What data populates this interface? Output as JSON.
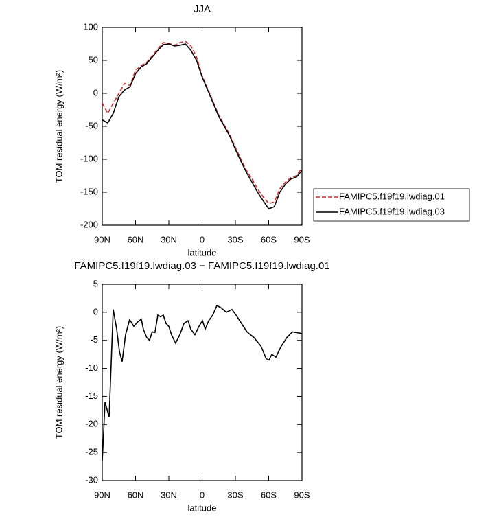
{
  "chart_data": [
    {
      "type": "line",
      "title": "JJA",
      "xlabel": "latitude",
      "ylabel": "TOM residual energy (W/m²)",
      "x": [
        90,
        85,
        80,
        75,
        70,
        65,
        60,
        55,
        50,
        45,
        40,
        35,
        30,
        25,
        20,
        15,
        10,
        5,
        0,
        -5,
        -10,
        -15,
        -20,
        -25,
        -30,
        -35,
        -40,
        -45,
        -50,
        -55,
        -60,
        -65,
        -70,
        -75,
        -80,
        -85,
        -90
      ],
      "series": [
        {
          "name": "FAMIPC5.f19f19.lwdiag.01",
          "color": "#e8222a",
          "linestyle": "dashed",
          "values": [
            -15,
            -30,
            -15,
            0,
            15,
            12,
            35,
            42,
            47,
            57,
            67,
            77,
            76,
            73,
            77,
            79,
            72,
            55,
            27,
            7,
            -13,
            -33,
            -48,
            -63,
            -82,
            -100,
            -117,
            -130,
            -145,
            -157,
            -167,
            -165,
            -145,
            -135,
            -128,
            -125,
            -113
          ]
        },
        {
          "name": "FAMIPC5.f19f19.lwdiag.03",
          "color": "#000000",
          "linestyle": "solid",
          "values": [
            -40,
            -45,
            -30,
            -5,
            5,
            10,
            30,
            40,
            45,
            55,
            65,
            74,
            75,
            72,
            73,
            75,
            65,
            50,
            25,
            5,
            -15,
            -35,
            -50,
            -65,
            -85,
            -103,
            -120,
            -135,
            -150,
            -163,
            -175,
            -172,
            -150,
            -138,
            -130,
            -127,
            -117
          ]
        }
      ],
      "xlim": [
        90,
        -90
      ],
      "xticks": [
        {
          "value": 90,
          "label": "90N"
        },
        {
          "value": 60,
          "label": "60N"
        },
        {
          "value": 30,
          "label": "30N"
        },
        0,
        {
          "value": -30,
          "label": "30S"
        },
        {
          "value": -60,
          "label": "60S"
        },
        {
          "value": -90,
          "label": "90S"
        }
      ],
      "ylim": [
        -200,
        100
      ],
      "yticks": [
        100,
        50,
        0,
        -50,
        -100,
        -150,
        -200
      ],
      "legend": "right"
    },
    {
      "type": "line",
      "title": "FAMIPC5.f19f19.lwdiag.03 − FAMIPC5.f19f19.lwdiag.01",
      "xlabel": "latitude",
      "ylabel": "TOM residual energy (W/m²)",
      "x": [
        90,
        87.5,
        83.8,
        80.1,
        77,
        74.5,
        72.1,
        69,
        65.3,
        61.6,
        58.5,
        54.8,
        53,
        49.9,
        47.4,
        45,
        42.5,
        39.9,
        37.4,
        35,
        32.5,
        30,
        27.6,
        23.9,
        20.1,
        16.4,
        12.7,
        10.2,
        6.5,
        2.8,
        -0.3,
        -2.8,
        -5.9,
        -9.6,
        -13.3,
        -17,
        -21.9,
        -26.9,
        -30.6,
        -35.5,
        -40.5,
        -46.7,
        -52.9,
        -57.8,
        -60.3,
        -62.8,
        -66.5,
        -71.4,
        -76.4,
        -81.3,
        -85,
        -90
      ],
      "series": [
        {
          "color": "#000000",
          "linestyle": "solid",
          "values": [
            -26.5,
            -16,
            -18.7,
            0.5,
            -3,
            -7,
            -8.8,
            -4,
            -1.3,
            -2.5,
            -1.8,
            -1.2,
            -3,
            -4.5,
            -5,
            -3.5,
            -3.6,
            -0.5,
            -0.8,
            -0.5,
            -2,
            -2.5,
            -4,
            -5.5,
            -4,
            -2,
            -1.5,
            -3,
            -4,
            -2.5,
            -1.5,
            -3,
            -1.5,
            -0.5,
            1.2,
            0.8,
            0,
            0.5,
            -0.5,
            -2,
            -3.5,
            -4.5,
            -6,
            -8.3,
            -8.5,
            -7.5,
            -8,
            -6,
            -4.5,
            -3.5,
            -3.6,
            -3.8
          ]
        }
      ],
      "xlim": [
        90,
        -90
      ],
      "xticks": [
        {
          "value": 90,
          "label": "90N"
        },
        {
          "value": 60,
          "label": "60N"
        },
        {
          "value": 30,
          "label": "30N"
        },
        0,
        {
          "value": -30,
          "label": "30S"
        },
        {
          "value": -60,
          "label": "60S"
        },
        {
          "value": -90,
          "label": "90S"
        }
      ],
      "ylim": [
        -30,
        5
      ],
      "yticks": [
        5,
        0,
        -5,
        -10,
        -15,
        -20,
        -25,
        -30
      ]
    }
  ]
}
